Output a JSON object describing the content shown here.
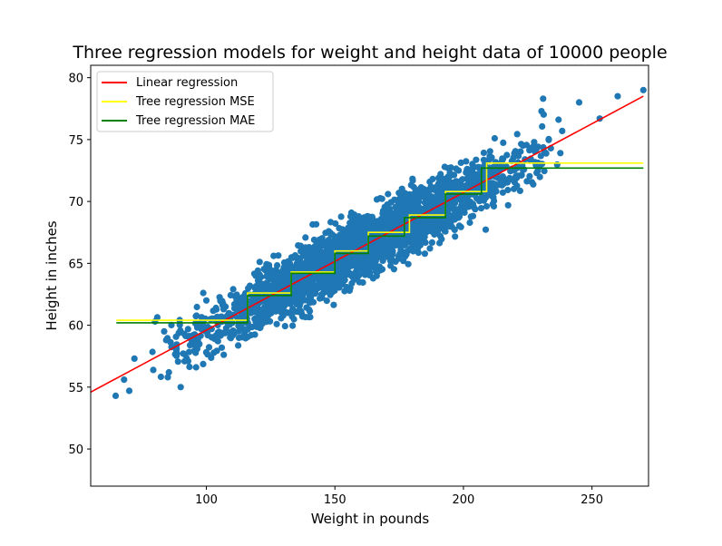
{
  "chart_data": {
    "type": "scatter",
    "title": "Three regression models for weight and height data of 10000 people",
    "xlabel": "Weight in pounds",
    "ylabel": "Height in inches",
    "xlim": [
      55,
      272
    ],
    "ylim": [
      47,
      81
    ],
    "x_ticks": [
      100,
      150,
      200,
      250
    ],
    "y_ticks": [
      50,
      55,
      60,
      65,
      70,
      75,
      80
    ],
    "grid": false,
    "legend_position": "top-left",
    "colors": {
      "points": "#1f77b4",
      "linear": "#ff0000",
      "tree_mse": "#ffff00",
      "tree_mae": "#008000"
    },
    "scatter": {
      "name": "data",
      "count": 10000,
      "x_range": [
        64.7,
        270.0
      ],
      "y_range": [
        54.3,
        79.0
      ],
      "outliers": [
        [
          64.7,
          54.3
        ],
        [
          68,
          55.6
        ],
        [
          70,
          54.7
        ],
        [
          72,
          57.3
        ],
        [
          85,
          55.8
        ],
        [
          90,
          55.0
        ],
        [
          96,
          56.6
        ],
        [
          80,
          60.3
        ],
        [
          100,
          62.0
        ],
        [
          253,
          76.7
        ],
        [
          260,
          78.5
        ],
        [
          270,
          79.0
        ],
        [
          237,
          76.6
        ],
        [
          245,
          78.0
        ],
        [
          231,
          78.3
        ]
      ]
    },
    "series": [
      {
        "name": "Linear regression",
        "x": [
          55,
          270
        ],
        "y": [
          54.6,
          78.5
        ]
      },
      {
        "name": "Tree regression MSE",
        "x": [
          65,
          116,
          116,
          133,
          133,
          150,
          150,
          163,
          163,
          179,
          179,
          193,
          193,
          209,
          209,
          270
        ],
        "y": [
          60.4,
          60.4,
          62.6,
          62.6,
          64.3,
          64.3,
          66.0,
          66.0,
          67.5,
          67.5,
          68.9,
          68.9,
          70.8,
          70.8,
          73.1,
          73.1
        ]
      },
      {
        "name": "Tree regression MAE",
        "x": [
          65,
          116,
          116,
          133,
          133,
          150,
          150,
          163,
          163,
          177,
          177,
          193,
          193,
          207,
          207,
          270
        ],
        "y": [
          60.2,
          60.2,
          62.4,
          62.4,
          64.2,
          64.2,
          65.8,
          65.8,
          67.2,
          67.2,
          68.7,
          68.7,
          70.6,
          70.6,
          72.7,
          72.7
        ]
      }
    ]
  }
}
